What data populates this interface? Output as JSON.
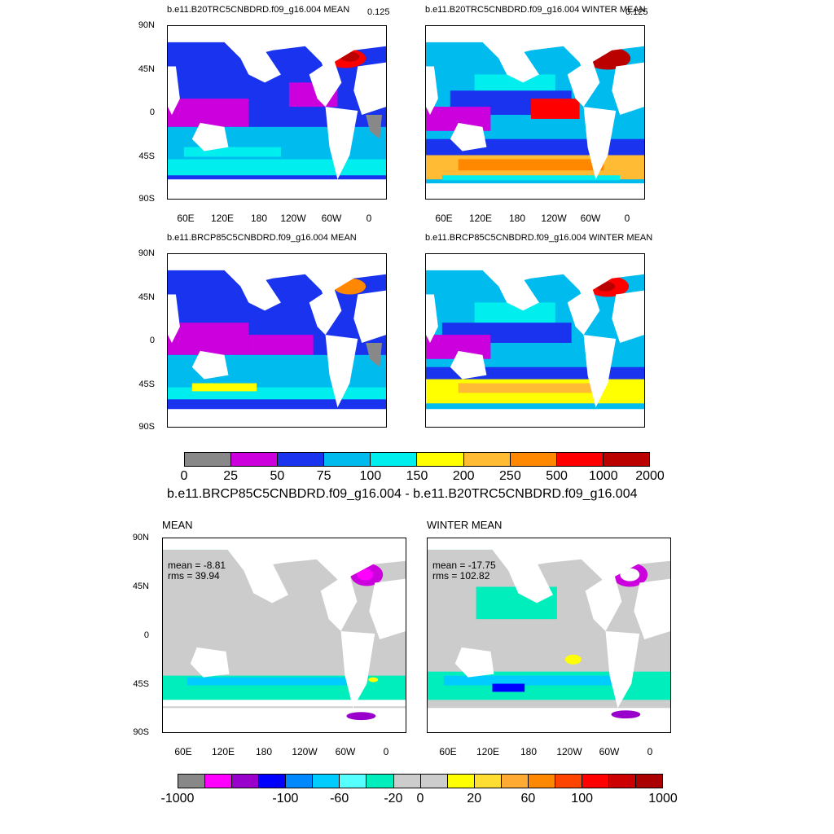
{
  "panels_top": [
    {
      "title": "b.e11.B20TRC5CNBDRD.f09_g16.004 MEAN",
      "corner": "0.125"
    },
    {
      "title": "b.e11.B20TRC5CNBDRD.f09_g16.004 WINTER MEAN",
      "corner": "0.125"
    },
    {
      "title": "b.e11.BRCP85C5CNBDRD.f09_g16.004 MEAN",
      "corner": ""
    },
    {
      "title": "b.e11.BRCP85C5CNBDRD.f09_g16.004 WINTER MEAN",
      "corner": ""
    }
  ],
  "panels_bottom": [
    {
      "title": "MEAN",
      "mean": "mean = -8.81",
      "rms": "rms = 39.94"
    },
    {
      "title": "WINTER MEAN",
      "mean": "mean = -17.75",
      "rms": "rms = 102.82"
    }
  ],
  "lat_labels": [
    "90N",
    "45N",
    "0",
    "45S",
    "90S"
  ],
  "lon_labels": [
    "60E",
    "120E",
    "180",
    "120W",
    "60W",
    "0"
  ],
  "colorbar_top": {
    "colors": [
      "#888888",
      "#cc00dd",
      "#1a33ee",
      "#00bbee",
      "#00eeee",
      "#ffff00",
      "#ffbb33",
      "#ff8800",
      "#ff0000",
      "#bb0000"
    ],
    "labels": [
      "0",
      "25",
      "50",
      "75",
      "100",
      "150",
      "200",
      "250",
      "500",
      "1000",
      "2000"
    ]
  },
  "difference_title": "b.e11.BRCP85C5CNBDRD.f09_g16.004 - b.e11.B20TRC5CNBDRD.f09_g16.004",
  "colorbar_bottom": {
    "colors": [
      "#888888",
      "#ff00ff",
      "#9900cc",
      "#0000ff",
      "#0088ff",
      "#00ccff",
      "#55ffff",
      "#00eebb",
      "#cccccc",
      "#cccccc",
      "#ffff00",
      "#ffdd33",
      "#ffaa33",
      "#ff8800",
      "#ff4400",
      "#ff0000",
      "#cc0000",
      "#aa0000"
    ],
    "labels": [
      "-1000",
      "-100",
      "-60",
      "-20",
      "0",
      "20",
      "60",
      "100",
      "1000"
    ]
  },
  "colors": {
    "land": "#ffffff",
    "bg_low": "#1a33ee",
    "bg_mid": "#00bbee",
    "bg_high": "#cc00dd",
    "diff_bg": "#cccccc"
  }
}
